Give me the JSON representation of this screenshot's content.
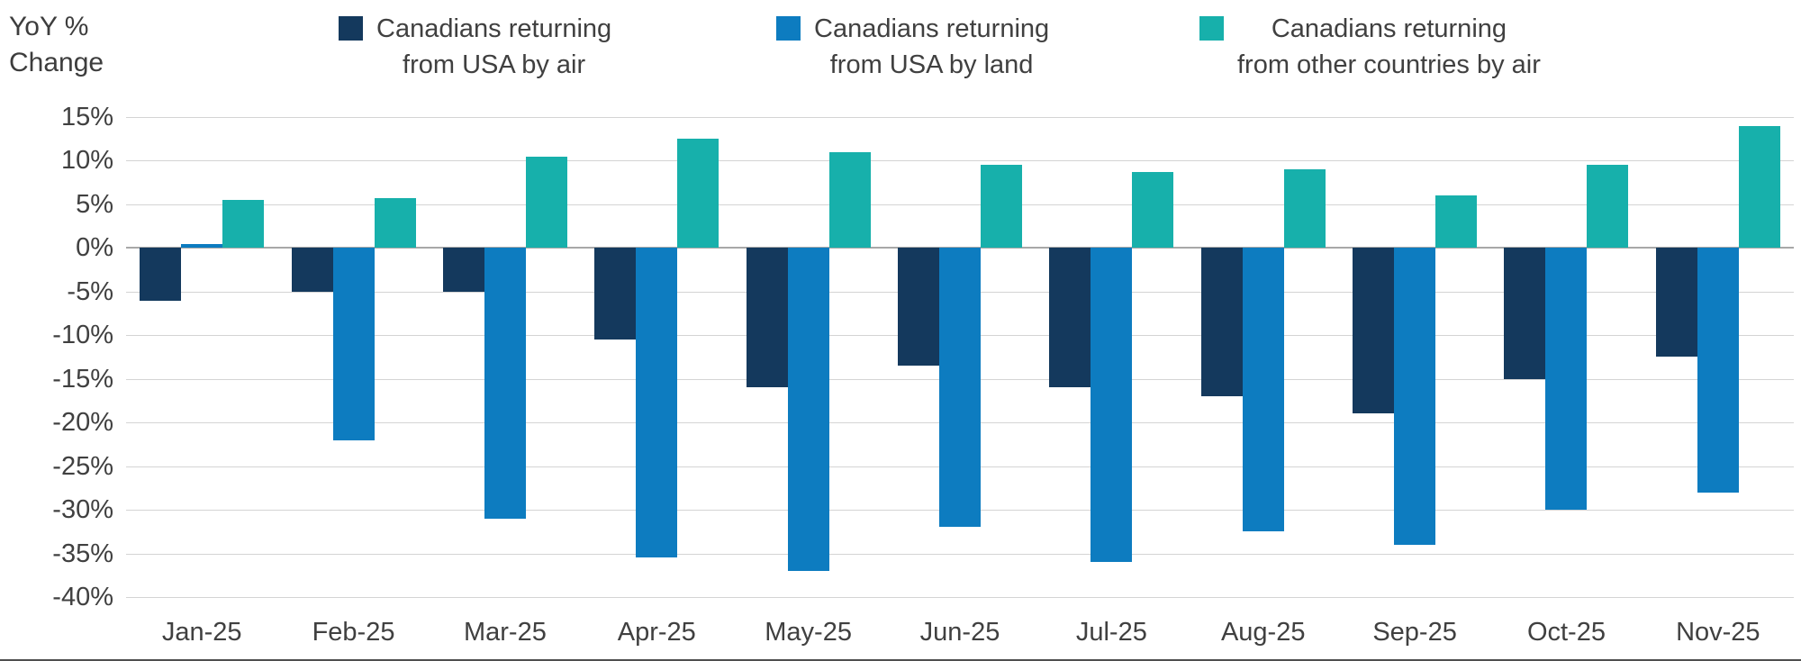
{
  "chart_data": {
    "type": "bar",
    "title": "",
    "ylabel": "YoY % Change",
    "ylabel_lines": [
      "YoY %",
      "Change"
    ],
    "xlabel": "",
    "categories": [
      "Jan-25",
      "Feb-25",
      "Mar-25",
      "Apr-25",
      "May-25",
      "Jun-25",
      "Jul-25",
      "Aug-25",
      "Sep-25",
      "Oct-25",
      "Nov-25"
    ],
    "series": [
      {
        "name": "Canadians returning from USA by air",
        "label_lines": [
          "Canadians returning",
          "from USA by air"
        ],
        "color": "#14395d",
        "values": [
          -6,
          -5,
          -5,
          -10.5,
          -16,
          -13.5,
          -16,
          -17,
          -19,
          -15,
          -12.5
        ]
      },
      {
        "name": "Canadians returning from USA by land",
        "label_lines": [
          "Canadians returning",
          "from USA by land"
        ],
        "color": "#0d7cc0",
        "values": [
          0.5,
          -22,
          -31,
          -35.5,
          -37,
          -32,
          -36,
          -32.5,
          -34,
          -30,
          -28
        ]
      },
      {
        "name": "Canadians returning from other countries by air",
        "label_lines": [
          "Canadians returning",
          "from other countries by air"
        ],
        "color": "#17b0ab",
        "values": [
          5.5,
          5.7,
          10.5,
          12.5,
          11,
          9.5,
          8.7,
          9,
          6,
          9.5,
          14
        ]
      }
    ],
    "ylim": [
      -40,
      15
    ],
    "ytick_step": 5,
    "ytick_labels": [
      "15%",
      "10%",
      "5%",
      "0%",
      "-5%",
      "-10%",
      "-15%",
      "-20%",
      "-25%",
      "-30%",
      "-35%",
      "-40%"
    ],
    "grid": true,
    "legend_position": "top"
  },
  "colors": {
    "text": "#404040",
    "gridline": "#d4d4d4",
    "zero_line": "#a8a8a8",
    "bottom_rule": "#4f4f4f"
  }
}
